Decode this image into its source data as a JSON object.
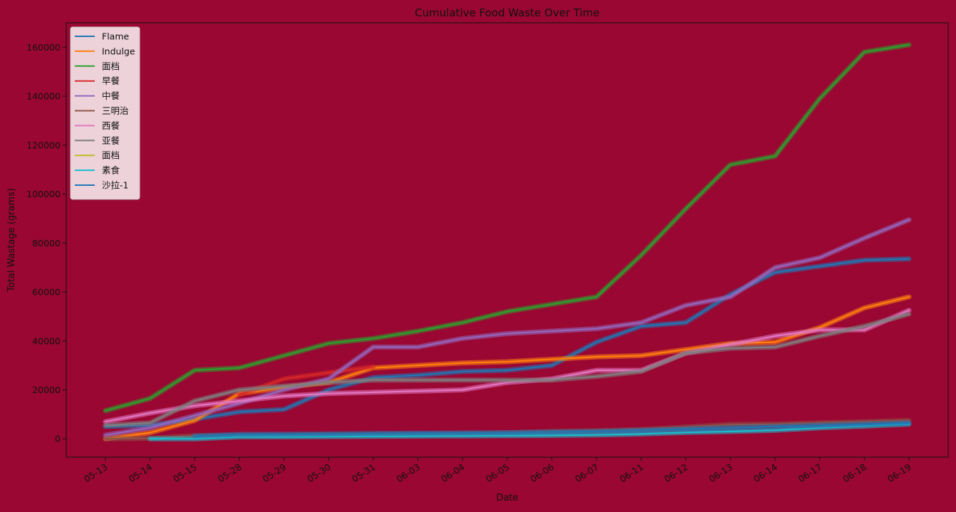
{
  "chart_data": {
    "type": "line",
    "title": "Cumulative Food Waste Over Time",
    "xlabel": "Date",
    "ylabel": "Total Wastage (grams)",
    "categories": [
      "05-13",
      "05-14",
      "05-15",
      "05-28",
      "05-29",
      "05-30",
      "05-31",
      "06-03",
      "06-04",
      "06-05",
      "06-06",
      "06-07",
      "06-11",
      "06-12",
      "06-13",
      "06-14",
      "06-17",
      "06-18",
      "06-19"
    ],
    "ylim": [
      -7500,
      170000
    ],
    "yticks": [
      0,
      20000,
      40000,
      60000,
      80000,
      100000,
      120000,
      140000,
      160000
    ],
    "ytick_labels": [
      "0",
      "20000",
      "40000",
      "60000",
      "80000",
      "100000",
      "120000",
      "140000",
      "160000"
    ],
    "grid": false,
    "legend_position": "top-left",
    "background": "#990732",
    "series": [
      {
        "name": "Flame",
        "color": "#1f77b4",
        "values": [
          5000,
          5500,
          8000,
          11000,
          12000,
          20000,
          25000,
          26000,
          27500,
          28000,
          30000,
          39500,
          46000,
          47500,
          59000,
          68000,
          70500,
          73000,
          73500
        ]
      },
      {
        "name": "Indulge",
        "color": "#ff7f0e",
        "values": [
          0,
          2500,
          7500,
          18500,
          21000,
          23000,
          29000,
          30000,
          31000,
          31500,
          32500,
          33500,
          34000,
          36500,
          39000,
          39500,
          45500,
          53500,
          58000
        ]
      },
      {
        "name": "面档",
        "color": "#2ca02c",
        "values": [
          11500,
          16500,
          28000,
          29000,
          34000,
          39000,
          41000,
          44000,
          47500,
          52000,
          55000,
          58000,
          75000,
          94000,
          112000,
          115500,
          139000,
          158000,
          161000
        ]
      },
      {
        "name": "早餐",
        "color": "#d62728",
        "values": [
          null,
          null,
          null,
          18000,
          24500,
          27000,
          29500,
          null,
          null,
          null,
          null,
          null,
          null,
          null,
          null,
          null,
          null,
          null,
          null
        ]
      },
      {
        "name": "中餐",
        "color": "#9467bd",
        "values": [
          1500,
          4500,
          9500,
          14500,
          20000,
          24500,
          37500,
          37500,
          41000,
          43000,
          44000,
          45000,
          47500,
          54500,
          58000,
          70000,
          74000,
          82000,
          89500
        ]
      },
      {
        "name": "三明治",
        "color": "#8c564b",
        "values": [
          0,
          200,
          1300,
          1500,
          1600,
          1700,
          1800,
          2000,
          2200,
          2500,
          3000,
          3300,
          3800,
          4800,
          5800,
          6000,
          6500,
          7000,
          7500
        ]
      },
      {
        "name": "西餐",
        "color": "#e377c2",
        "values": [
          7000,
          10500,
          13500,
          15500,
          17500,
          18500,
          19000,
          19500,
          20000,
          23000,
          24500,
          28000,
          28000,
          35000,
          38500,
          42000,
          44500,
          44500,
          52500
        ]
      },
      {
        "name": "亚餐",
        "color": "#7f7f7f",
        "values": [
          5500,
          6500,
          15500,
          20000,
          21500,
          23000,
          24000,
          24000,
          24000,
          24000,
          24000,
          25500,
          27500,
          35000,
          37000,
          37500,
          42000,
          46000,
          51000
        ]
      },
      {
        "name": "面档",
        "color": "#bcbd22",
        "values": [
          null,
          null,
          null,
          null,
          null,
          null,
          null,
          null,
          null,
          null,
          null,
          null,
          null,
          null,
          null,
          null,
          null,
          null,
          null
        ]
      },
      {
        "name": "素食",
        "color": "#17becf",
        "values": [
          null,
          0,
          0,
          800,
          800,
          900,
          1000,
          1100,
          1200,
          1300,
          1400,
          1600,
          2000,
          2600,
          3000,
          3500,
          4500,
          5200,
          6000
        ]
      },
      {
        "name": "沙拉-1",
        "color": "#1f77b4",
        "values": [
          null,
          null,
          1200,
          1800,
          1900,
          2000,
          2200,
          2300,
          2400,
          2500,
          2800,
          3000,
          3500,
          4000,
          4500,
          5000,
          5500,
          6000,
          6500
        ]
      }
    ]
  }
}
